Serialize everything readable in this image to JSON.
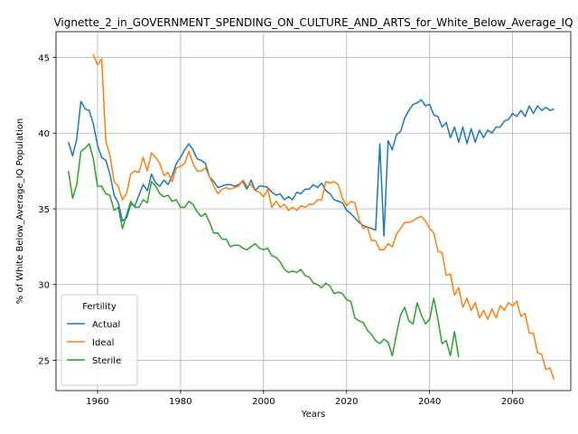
{
  "chart_data": {
    "type": "line",
    "title": "Vignette_2_in_GOVERNMENT_SPENDING_ON_CULTURE_AND_ARTS_for_White_Below_Average_IQ",
    "xlabel": "Years",
    "ylabel": "% of White Below_Average_IQ Population",
    "xlim": [
      1950,
      2074
    ],
    "ylim": [
      23,
      46.7
    ],
    "xticks": [
      1960,
      1980,
      2000,
      2020,
      2040,
      2060
    ],
    "yticks": [
      25,
      30,
      35,
      40,
      45
    ],
    "grid": true,
    "legend": {
      "title": "Fertility",
      "placement": "lower-left"
    },
    "series": [
      {
        "name": "Actual",
        "color": "#1f77b4",
        "x": [
          1953,
          1954,
          1955,
          1956,
          1957,
          1958,
          1959,
          1960,
          1961,
          1962,
          1963,
          1964,
          1965,
          1966,
          1967,
          1968,
          1969,
          1970,
          1971,
          1972,
          1973,
          1974,
          1975,
          1976,
          1977,
          1978,
          1979,
          1980,
          1981,
          1982,
          1983,
          1984,
          1985,
          1986,
          1987,
          1988,
          1989,
          1990,
          1991,
          1992,
          1993,
          1994,
          1995,
          1996,
          1997,
          1998,
          1999,
          2000,
          2001,
          2002,
          2003,
          2004,
          2005,
          2006,
          2007,
          2008,
          2009,
          2010,
          2011,
          2012,
          2013,
          2014,
          2015,
          2016,
          2017,
          2018,
          2019,
          2020,
          2021,
          2022,
          2023,
          2024,
          2025,
          2026,
          2027,
          2028,
          2029,
          2030,
          2031,
          2032,
          2033,
          2034,
          2035,
          2036,
          2037,
          2038,
          2039,
          2040,
          2041,
          2042,
          2043,
          2044,
          2045,
          2046,
          2047,
          2048,
          2049,
          2050,
          2051,
          2052,
          2053,
          2054,
          2055,
          2056,
          2057,
          2058,
          2059,
          2060,
          2061,
          2062,
          2063,
          2064,
          2065,
          2066,
          2067,
          2068,
          2069,
          2070
        ],
        "values": [
          39.4,
          38.5,
          39.6,
          42.1,
          41.6,
          41.5,
          40.6,
          39.2,
          38.4,
          38.2,
          37.3,
          35.9,
          35.4,
          34.2,
          34.4,
          35.3,
          35.2,
          35.9,
          36.6,
          36.2,
          37.3,
          36.7,
          36.5,
          36.9,
          36.6,
          37.2,
          38.0,
          38.4,
          38.9,
          39.3,
          38.9,
          38.3,
          38.2,
          38.0,
          37.1,
          36.8,
          36.4,
          36.5,
          36.6,
          36.6,
          36.5,
          36.6,
          36.8,
          36.3,
          36.9,
          36.2,
          36.5,
          36.5,
          36.4,
          36.1,
          35.9,
          36.0,
          35.6,
          35.8,
          35.6,
          36.1,
          36.0,
          36.3,
          36.3,
          36.6,
          36.4,
          36.7,
          36.2,
          36.0,
          35.6,
          35.5,
          35.4,
          34.9,
          34.7,
          34.4,
          34.1,
          33.9,
          33.8,
          33.7,
          33.6,
          39.3,
          33.2,
          39.5,
          38.9,
          39.9,
          40.1,
          41.0,
          41.5,
          41.9,
          42.0,
          42.2,
          41.8,
          41.9,
          41.2,
          41.1,
          40.4,
          40.7,
          39.7,
          40.4,
          39.4,
          40.4,
          39.3,
          40.3,
          39.4,
          40.2,
          39.7,
          40.2,
          40.0,
          40.4,
          40.4,
          40.8,
          40.9,
          41.3,
          41.1,
          41.5,
          41.1,
          41.8,
          41.3,
          41.8,
          41.5,
          41.7,
          41.5,
          41.6
        ]
      },
      {
        "name": "Ideal",
        "color": "#ff7f0e",
        "x": [
          1959,
          1960,
          1961,
          1962,
          1963,
          1964,
          1965,
          1966,
          1967,
          1968,
          1969,
          1970,
          1971,
          1972,
          1973,
          1974,
          1975,
          1976,
          1977,
          1978,
          1979,
          1980,
          1981,
          1982,
          1983,
          1984,
          1985,
          1986,
          1987,
          1988,
          1989,
          1990,
          1991,
          1992,
          1993,
          1994,
          1995,
          1996,
          1997,
          1998,
          1999,
          2000,
          2001,
          2002,
          2003,
          2004,
          2005,
          2006,
          2007,
          2008,
          2009,
          2010,
          2011,
          2012,
          2013,
          2014,
          2015,
          2016,
          2017,
          2018,
          2019,
          2020,
          2021,
          2022,
          2023,
          2024,
          2025,
          2026,
          2027,
          2028,
          2029,
          2030,
          2031,
          2032,
          2033,
          2034,
          2035,
          2036,
          2037,
          2038,
          2039,
          2040,
          2041,
          2042,
          2043,
          2044,
          2045,
          2046,
          2047,
          2048,
          2049,
          2050,
          2051,
          2052,
          2053,
          2054,
          2055,
          2056,
          2057,
          2058,
          2059,
          2060,
          2061,
          2062,
          2063,
          2064,
          2065,
          2066,
          2067,
          2068,
          2069,
          2070
        ],
        "values": [
          45.2,
          44.5,
          44.9,
          39.5,
          38.5,
          36.8,
          36.5,
          35.6,
          36.0,
          37.3,
          37.5,
          37.4,
          38.4,
          37.5,
          38.7,
          38.4,
          38.0,
          37.2,
          37.4,
          36.8,
          37.7,
          37.8,
          38.0,
          38.8,
          38.0,
          37.5,
          37.5,
          37.7,
          37.1,
          36.5,
          36.0,
          36.3,
          36.4,
          36.3,
          36.4,
          36.5,
          36.9,
          36.5,
          36.6,
          36.2,
          36.1,
          35.8,
          36.3,
          35.1,
          35.5,
          35.1,
          35.3,
          34.9,
          35.1,
          34.9,
          35.2,
          35.1,
          35.3,
          35.3,
          35.6,
          35.6,
          36.8,
          36.7,
          36.8,
          36.6,
          35.7,
          35.2,
          35.5,
          35.4,
          34.3,
          33.7,
          33.8,
          32.9,
          32.9,
          32.3,
          32.3,
          32.7,
          32.5,
          33.3,
          33.7,
          34.1,
          34.1,
          34.2,
          34.4,
          34.5,
          34.2,
          33.7,
          33.4,
          32.2,
          32.1,
          30.6,
          30.7,
          29.3,
          29.8,
          28.5,
          29.1,
          28.3,
          28.8,
          27.8,
          28.3,
          27.7,
          28.4,
          27.8,
          28.6,
          28.3,
          28.8,
          28.6,
          28.9,
          27.9,
          28.1,
          26.8,
          26.8,
          25.5,
          25.4,
          24.4,
          24.5,
          23.7
        ]
      },
      {
        "name": "Sterile",
        "color": "#2ca02c",
        "x": [
          1953,
          1954,
          1955,
          1956,
          1957,
          1958,
          1959,
          1960,
          1961,
          1962,
          1963,
          1964,
          1965,
          1966,
          1967,
          1968,
          1969,
          1970,
          1971,
          1972,
          1973,
          1974,
          1975,
          1976,
          1977,
          1978,
          1979,
          1980,
          1981,
          1982,
          1983,
          1984,
          1985,
          1986,
          1987,
          1988,
          1989,
          1990,
          1991,
          1992,
          1993,
          1994,
          1995,
          1996,
          1997,
          1998,
          1999,
          2000,
          2001,
          2002,
          2003,
          2004,
          2005,
          2006,
          2007,
          2008,
          2009,
          2010,
          2011,
          2012,
          2013,
          2014,
          2015,
          2016,
          2017,
          2018,
          2019,
          2020,
          2021,
          2022,
          2023,
          2024,
          2025,
          2026,
          2027,
          2028,
          2029,
          2030,
          2031,
          2032,
          2033,
          2034,
          2035,
          2036,
          2037,
          2038,
          2039,
          2040,
          2041,
          2042,
          2043,
          2044,
          2045,
          2046,
          2047
        ],
        "values": [
          37.5,
          35.7,
          36.6,
          38.8,
          39.0,
          39.3,
          38.3,
          36.5,
          36.5,
          36.0,
          35.9,
          34.9,
          35.1,
          33.7,
          34.6,
          35.5,
          35.1,
          35.1,
          35.6,
          35.4,
          36.8,
          36.5,
          36.0,
          35.8,
          35.9,
          35.5,
          35.6,
          35.1,
          35.1,
          35.5,
          35.3,
          34.8,
          34.5,
          34.7,
          34.1,
          33.4,
          33.4,
          33.0,
          33.0,
          32.5,
          32.6,
          32.6,
          32.4,
          32.3,
          32.5,
          32.7,
          32.4,
          32.3,
          32.4,
          31.9,
          31.8,
          31.5,
          31.0,
          30.8,
          30.9,
          30.8,
          31.0,
          30.6,
          30.5,
          30.1,
          30.0,
          29.8,
          30.1,
          29.9,
          29.4,
          29.5,
          29.4,
          29.0,
          28.9,
          27.8,
          27.6,
          27.5,
          27.0,
          26.7,
          26.3,
          26.1,
          26.4,
          26.2,
          25.3,
          26.7,
          28.0,
          28.5,
          27.6,
          27.4,
          28.8,
          28.0,
          27.4,
          27.7,
          29.1,
          27.7,
          26.1,
          26.3,
          25.3,
          26.9,
          25.2
        ]
      }
    ]
  }
}
